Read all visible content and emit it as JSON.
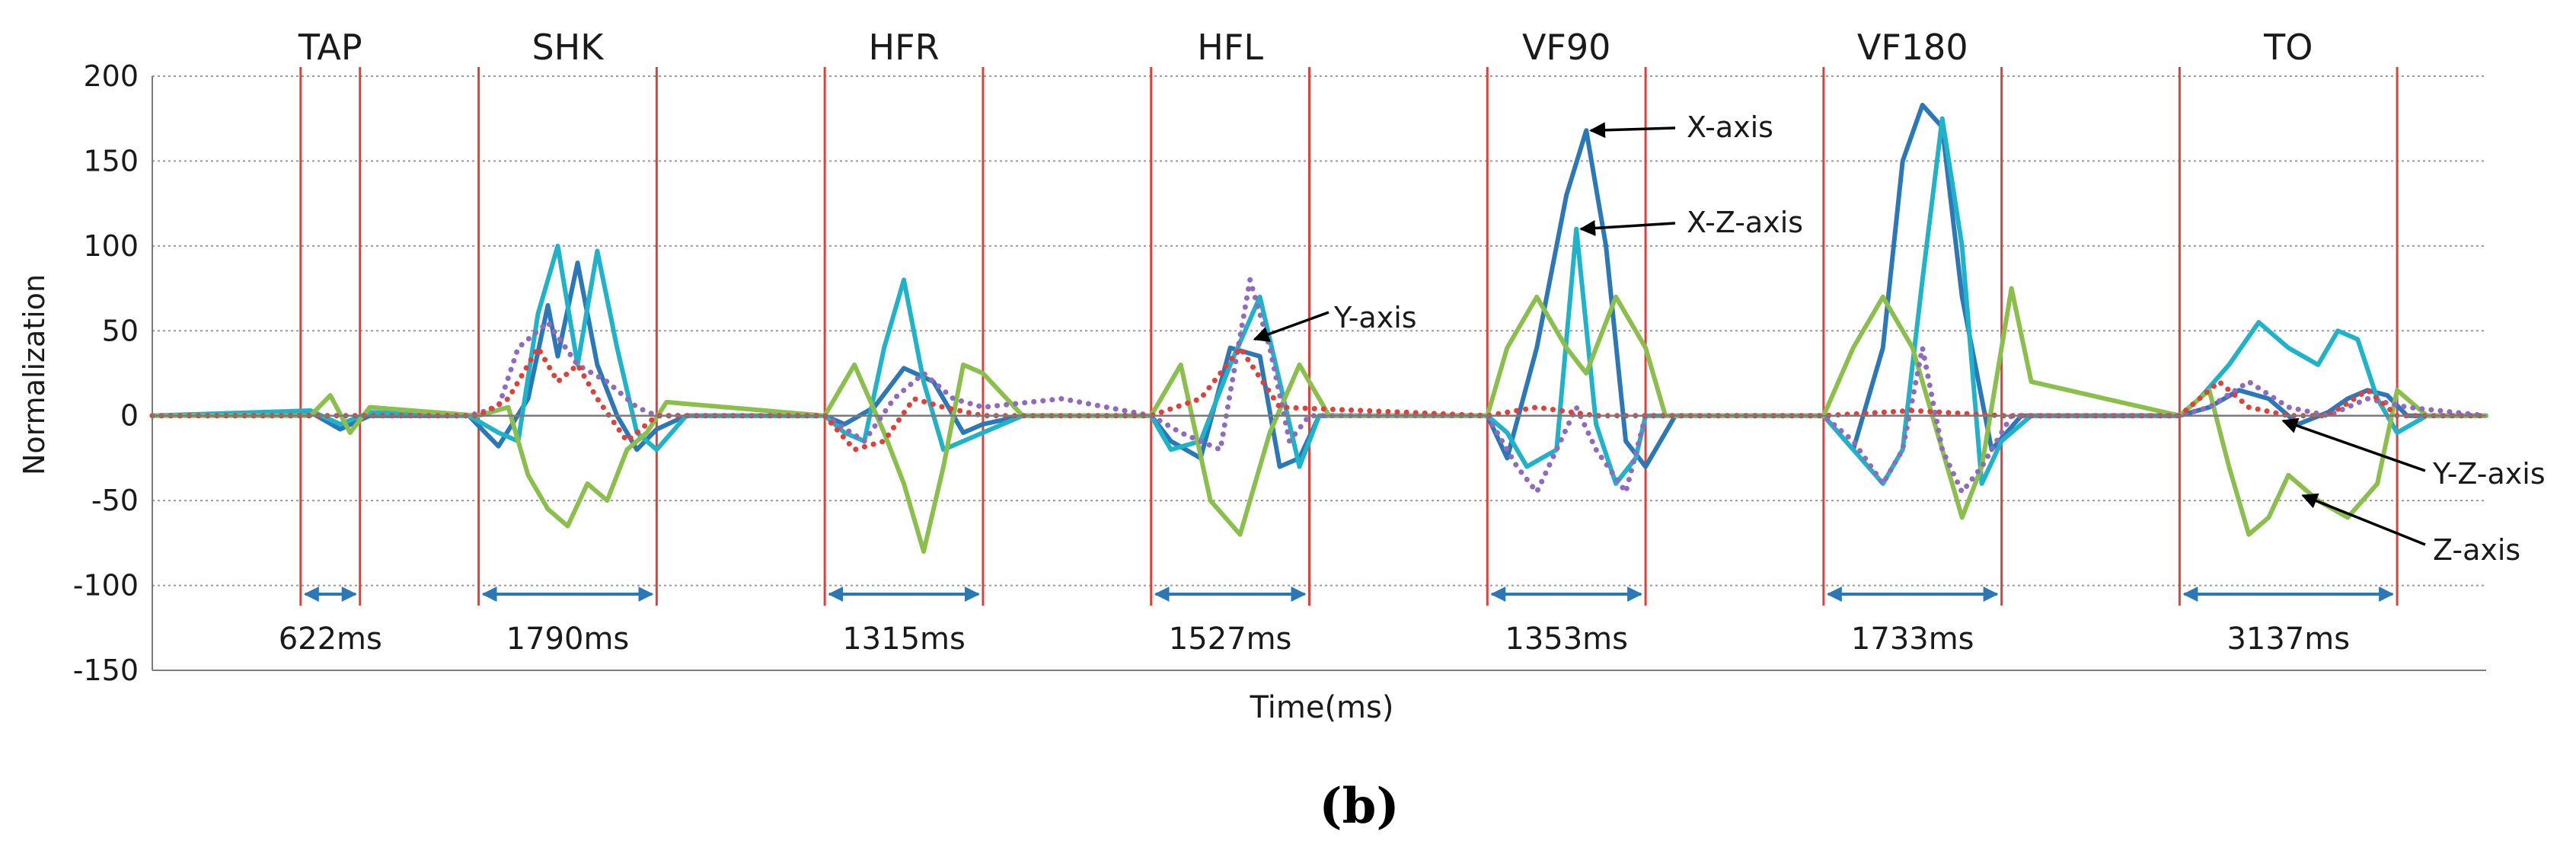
{
  "chart_data": {
    "type": "line",
    "title": "",
    "caption": "(b)",
    "xlabel": "Time(ms)",
    "ylabel": "Normalization",
    "ylim": [
      -150,
      200
    ],
    "yticks": [
      200,
      150,
      100,
      50,
      0,
      -50,
      -100,
      -150
    ],
    "ytick_labels": [
      "200",
      "150",
      "100",
      "50",
      "0",
      "-50",
      "-100",
      "-150"
    ],
    "grid": true,
    "segments": [
      {
        "name": "TAP",
        "duration": "622ms",
        "start": 0.75,
        "end": 1.05
      },
      {
        "name": "SHK",
        "duration": "1790ms",
        "start": 1.65,
        "end": 2.55
      },
      {
        "name": "HFR",
        "duration": "1315ms",
        "start": 3.4,
        "end": 4.2
      },
      {
        "name": "HFL",
        "duration": "1527ms",
        "start": 5.05,
        "end": 5.85
      },
      {
        "name": "VF90",
        "duration": "1353ms",
        "start": 6.75,
        "end": 7.55
      },
      {
        "name": "VF180",
        "duration": "1733ms",
        "start": 8.45,
        "end": 9.35
      },
      {
        "name": "TO",
        "duration": "3137ms",
        "start": 10.25,
        "end": 11.35
      }
    ],
    "x_range": [
      0,
      11.8
    ],
    "series": [
      {
        "name": "X-axis",
        "color": "#2b78b8",
        "style": "solid",
        "x": [
          0,
          0.8,
          0.95,
          1.1,
          1.6,
          1.75,
          1.9,
          2.0,
          2.05,
          2.15,
          2.25,
          2.35,
          2.45,
          2.55,
          2.7,
          3.4,
          3.5,
          3.65,
          3.8,
          3.95,
          4.1,
          4.2,
          4.4,
          5.05,
          5.15,
          5.3,
          5.45,
          5.6,
          5.7,
          5.8,
          5.9,
          6.75,
          6.85,
          7.0,
          7.15,
          7.25,
          7.35,
          7.45,
          7.55,
          7.7,
          8.45,
          8.6,
          8.75,
          8.85,
          8.95,
          9.05,
          9.15,
          9.3,
          9.45,
          10.25,
          10.4,
          10.55,
          10.7,
          10.85,
          11.0,
          11.1,
          11.2,
          11.3,
          11.4,
          11.8
        ],
        "y": [
          0,
          2,
          -8,
          0,
          0,
          -18,
          10,
          65,
          35,
          90,
          30,
          0,
          -20,
          -8,
          0,
          0,
          -5,
          5,
          28,
          20,
          -10,
          -5,
          0,
          0,
          -15,
          -25,
          40,
          35,
          -30,
          -25,
          0,
          0,
          -25,
          40,
          130,
          168,
          100,
          -15,
          -30,
          0,
          0,
          -20,
          40,
          150,
          183,
          170,
          70,
          -20,
          0,
          0,
          5,
          15,
          10,
          -5,
          2,
          10,
          15,
          12,
          0,
          0
        ]
      },
      {
        "name": "X-Z-axis",
        "color": "#1fb3c9",
        "style": "solid",
        "x": [
          0,
          0.8,
          0.95,
          1.1,
          1.6,
          1.75,
          1.85,
          1.95,
          2.05,
          2.15,
          2.25,
          2.35,
          2.45,
          2.55,
          2.7,
          3.4,
          3.5,
          3.6,
          3.7,
          3.8,
          3.9,
          4.0,
          4.1,
          4.2,
          4.4,
          5.05,
          5.15,
          5.3,
          5.45,
          5.6,
          5.7,
          5.8,
          5.9,
          6.75,
          6.85,
          6.95,
          7.1,
          7.2,
          7.3,
          7.4,
          7.5,
          7.55,
          7.7,
          8.45,
          8.6,
          8.75,
          8.85,
          8.95,
          9.05,
          9.15,
          9.25,
          9.35,
          9.5,
          10.25,
          10.35,
          10.5,
          10.65,
          10.8,
          10.95,
          11.05,
          11.15,
          11.25,
          11.35,
          11.5,
          11.8
        ],
        "y": [
          0,
          3,
          -5,
          2,
          0,
          -10,
          -15,
          60,
          100,
          30,
          97,
          40,
          -10,
          -20,
          0,
          0,
          -10,
          -15,
          40,
          80,
          20,
          -20,
          -15,
          -10,
          0,
          0,
          -20,
          -15,
          30,
          70,
          20,
          -30,
          0,
          0,
          -10,
          -30,
          -20,
          110,
          -5,
          -40,
          -25,
          0,
          0,
          0,
          -20,
          -40,
          -20,
          80,
          175,
          100,
          -40,
          -15,
          0,
          0,
          10,
          30,
          55,
          40,
          30,
          50,
          45,
          10,
          -10,
          0,
          0
        ]
      },
      {
        "name": "Z-axis",
        "color": "#8bbf4b",
        "style": "solid",
        "x": [
          0,
          0.8,
          0.9,
          1.0,
          1.1,
          1.65,
          1.8,
          1.9,
          2.0,
          2.1,
          2.2,
          2.3,
          2.4,
          2.5,
          2.6,
          3.4,
          3.55,
          3.7,
          3.8,
          3.9,
          4.0,
          4.1,
          4.2,
          4.4,
          5.05,
          5.2,
          5.35,
          5.5,
          5.65,
          5.8,
          5.95,
          6.75,
          6.85,
          7.0,
          7.15,
          7.25,
          7.4,
          7.55,
          7.65,
          8.45,
          8.6,
          8.75,
          8.9,
          9.05,
          9.15,
          9.25,
          9.4,
          9.5,
          10.25,
          10.4,
          10.5,
          10.6,
          10.7,
          10.8,
          10.95,
          11.1,
          11.25,
          11.35,
          11.5,
          11.8
        ],
        "y": [
          0,
          0,
          12,
          -10,
          5,
          0,
          5,
          -35,
          -55,
          -65,
          -40,
          -50,
          -20,
          -10,
          8,
          0,
          30,
          -10,
          -40,
          -80,
          -30,
          30,
          25,
          0,
          0,
          30,
          -50,
          -70,
          -10,
          30,
          0,
          0,
          40,
          70,
          40,
          25,
          70,
          40,
          0,
          0,
          40,
          70,
          40,
          -20,
          -60,
          -30,
          75,
          20,
          0,
          15,
          -30,
          -70,
          -60,
          -35,
          -50,
          -60,
          -40,
          15,
          0,
          0
        ]
      },
      {
        "name": "Y-axis",
        "color": "#8f6bc0",
        "style": "dotted",
        "x": [
          0,
          1.6,
          1.75,
          1.85,
          2.0,
          2.15,
          2.3,
          2.45,
          2.55,
          3.4,
          3.6,
          3.75,
          3.9,
          4.05,
          4.2,
          4.6,
          5.05,
          5.2,
          5.4,
          5.55,
          5.65,
          5.75,
          5.85,
          6.75,
          6.9,
          7.0,
          7.1,
          7.2,
          7.3,
          7.45,
          7.55,
          8.45,
          8.6,
          8.75,
          8.85,
          8.95,
          9.05,
          9.15,
          9.25,
          9.4,
          10.25,
          10.4,
          10.6,
          10.8,
          11.0,
          11.2,
          11.4,
          11.8
        ],
        "y": [
          0,
          0,
          5,
          40,
          55,
          30,
          20,
          5,
          0,
          0,
          -15,
          10,
          25,
          10,
          5,
          10,
          0,
          -10,
          -20,
          80,
          40,
          -15,
          0,
          0,
          -30,
          -45,
          -20,
          5,
          -20,
          -45,
          0,
          0,
          -15,
          -40,
          -20,
          40,
          -20,
          -45,
          -30,
          0,
          0,
          5,
          20,
          5,
          0,
          10,
          5,
          0
        ]
      },
      {
        "name": "Y-Z-axis",
        "color": "#e0403a",
        "style": "dotted",
        "x": [
          0,
          1.65,
          1.8,
          1.95,
          2.05,
          2.15,
          2.25,
          2.4,
          2.55,
          3.4,
          3.55,
          3.7,
          3.85,
          4.0,
          4.2,
          5.05,
          5.3,
          5.5,
          5.7,
          6.75,
          7.0,
          7.3,
          7.55,
          8.45,
          8.9,
          9.35,
          10.25,
          10.45,
          10.6,
          10.8,
          11.0,
          11.2,
          11.35,
          11.8
        ],
        "y": [
          0,
          0,
          10,
          40,
          20,
          30,
          10,
          -15,
          0,
          0,
          -20,
          -15,
          10,
          5,
          0,
          0,
          10,
          40,
          5,
          0,
          5,
          0,
          0,
          0,
          3,
          0,
          0,
          20,
          5,
          0,
          0,
          15,
          0,
          0
        ]
      }
    ],
    "annotations": [
      {
        "label": "X-axis",
        "target_x": 7.25,
        "target_y": 168
      },
      {
        "label": "X-Z-axis",
        "target_x": 7.2,
        "target_y": 110
      },
      {
        "label": "Y-axis",
        "target_x": 5.55,
        "target_y": 45
      },
      {
        "label": "Y-Z-axis",
        "target_x": 10.75,
        "target_y": -3
      },
      {
        "label": "Z-axis",
        "target_x": 10.85,
        "target_y": -47
      }
    ]
  }
}
